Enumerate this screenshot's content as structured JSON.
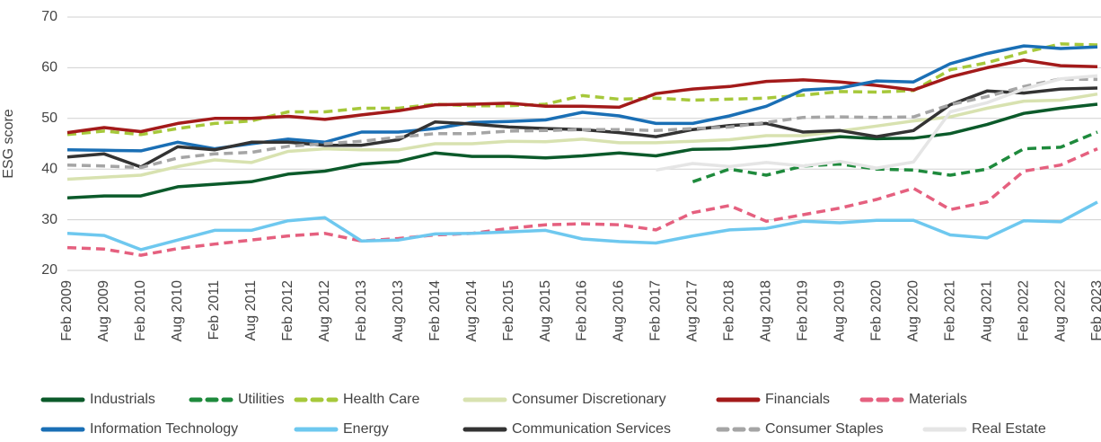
{
  "chart_data": {
    "type": "line",
    "ylabel": "ESG score",
    "categories": [
      "Feb 2009",
      "Aug 2009",
      "Feb 2010",
      "Aug 2010",
      "Feb 2011",
      "Aug 2011",
      "Feb 2012",
      "Aug 2012",
      "Feb 2013",
      "Aug 2013",
      "Feb 2014",
      "Aug 2014",
      "Feb 2015",
      "Aug 2015",
      "Feb 2016",
      "Aug 2016",
      "Feb 2017",
      "Aug 2017",
      "Feb 2018",
      "Aug 2018",
      "Feb 2019",
      "Aug 2019",
      "Feb 2020",
      "Aug 2020",
      "Feb 2021",
      "Aug 2021",
      "Feb 2022",
      "Aug 2022",
      "Feb 2023"
    ],
    "ylim": [
      20,
      70
    ],
    "yticks": [
      20,
      30,
      40,
      50,
      60,
      70
    ],
    "grid": true,
    "series": [
      {
        "name": "Industrials",
        "color": "#0b5a2a",
        "dashed": false,
        "values": [
          34.3,
          34.7,
          34.7,
          36.5,
          37,
          37.5,
          39,
          39.6,
          41,
          41.5,
          43.2,
          42.5,
          42.5,
          42.2,
          42.6,
          43.2,
          42.6,
          43.9,
          44,
          44.6,
          45.5,
          46.4,
          46,
          46.1,
          47,
          48.8,
          51,
          52,
          52.8
        ]
      },
      {
        "name": "Utilities",
        "color": "#1e8a3c",
        "dashed": true,
        "values": [
          null,
          null,
          null,
          null,
          null,
          null,
          null,
          null,
          null,
          null,
          null,
          null,
          null,
          null,
          null,
          null,
          null,
          37.5,
          40,
          38.8,
          40.6,
          41,
          40,
          39.8,
          38.8,
          40,
          44,
          44.3,
          47.3
        ]
      },
      {
        "name": "Health Care",
        "color": "#a6c83a",
        "dashed": true,
        "values": [
          46.8,
          47.5,
          46.8,
          48,
          49,
          49.5,
          51.3,
          51.3,
          52,
          52,
          52.8,
          52.5,
          52.5,
          52.8,
          54.5,
          53.8,
          54,
          53.6,
          53.8,
          54,
          54.6,
          55.3,
          55.2,
          55.5,
          59.6,
          61,
          63,
          64.7,
          64.5
        ]
      },
      {
        "name": "Consumer Discretionary",
        "color": "#d8e2b0",
        "dashed": false,
        "values": [
          38,
          38.4,
          38.8,
          40.5,
          41.8,
          41.3,
          43.5,
          44,
          43.8,
          43.8,
          45,
          45,
          45.5,
          45.4,
          45.9,
          45.2,
          45.2,
          45.5,
          45.8,
          46.6,
          46.6,
          47.5,
          48.5,
          49.5,
          50.3,
          52,
          53.4,
          53.6,
          54.8
        ]
      },
      {
        "name": "Financials",
        "color": "#a31a1a",
        "dashed": false,
        "values": [
          47.2,
          48.2,
          47.4,
          49,
          50,
          50,
          50.4,
          49.8,
          50.7,
          51.5,
          52.7,
          52.8,
          53,
          52.4,
          52.4,
          52.2,
          54.9,
          55.8,
          56.3,
          57.3,
          57.6,
          57.2,
          56.5,
          55.6,
          58.2,
          60,
          61.5,
          60.4,
          60.2
        ]
      },
      {
        "name": "Materials",
        "color": "#e5607f",
        "dashed": true,
        "values": [
          24.5,
          24.2,
          23,
          24.3,
          25.2,
          26,
          26.8,
          27.3,
          25.8,
          26.3,
          27,
          27.3,
          28.3,
          29,
          29.2,
          29,
          28,
          31.4,
          32.8,
          29.7,
          31,
          32.3,
          34,
          36.2,
          32,
          33.5,
          39.6,
          40.8,
          44
        ]
      },
      {
        "name": "Information Technology",
        "color": "#1a6fb5",
        "dashed": false,
        "values": [
          43.8,
          43.7,
          43.6,
          45.3,
          44,
          45,
          45.9,
          45.3,
          47.3,
          47.3,
          48,
          49.2,
          49.4,
          49.7,
          51.2,
          50.5,
          49,
          49,
          50.5,
          52.4,
          55.6,
          56,
          57.4,
          57.2,
          60.8,
          62.8,
          64.3,
          63.8,
          64.1
        ]
      },
      {
        "name": "Energy",
        "color": "#6ec8ef",
        "dashed": false,
        "values": [
          27.3,
          26.9,
          24.1,
          26,
          27.9,
          27.9,
          29.8,
          30.4,
          25.8,
          26,
          27.2,
          27.3,
          27.6,
          27.9,
          26.2,
          25.7,
          25.4,
          26.8,
          28,
          28.3,
          29.7,
          29.4,
          29.9,
          29.9,
          27,
          26.4,
          29.8,
          29.6,
          33.5
        ]
      },
      {
        "name": "Communication Services",
        "color": "#333333",
        "dashed": false,
        "values": [
          42.4,
          43,
          40.4,
          44.4,
          43.8,
          45.3,
          45.3,
          44.7,
          44.7,
          45.8,
          49.3,
          48.9,
          48.3,
          48,
          47.8,
          47.2,
          46.4,
          47.8,
          48.6,
          49,
          47.3,
          47.6,
          46.4,
          47.6,
          52.7,
          55.4,
          55,
          55.8,
          56
        ]
      },
      {
        "name": "Consumer Staples",
        "color": "#a5a5a5",
        "dashed": true,
        "values": [
          40.8,
          40.6,
          40.3,
          42.2,
          43,
          43.3,
          44.5,
          45,
          45.5,
          46.3,
          47,
          47,
          47.5,
          47.6,
          47.8,
          47.8,
          47.6,
          48,
          48.3,
          49.2,
          50.2,
          50.3,
          50.2,
          50.3,
          52.7,
          54.3,
          56.3,
          57.8,
          57.7
        ]
      },
      {
        "name": "Real Estate",
        "color": "#e5e5e5",
        "dashed": false,
        "values": [
          null,
          null,
          null,
          null,
          null,
          null,
          null,
          null,
          null,
          null,
          null,
          null,
          null,
          null,
          null,
          null,
          39.8,
          41.1,
          40.5,
          41.3,
          40.6,
          41.5,
          40.2,
          41.4,
          51.3,
          53.1,
          55.8,
          57.8,
          58.4
        ]
      }
    ]
  }
}
